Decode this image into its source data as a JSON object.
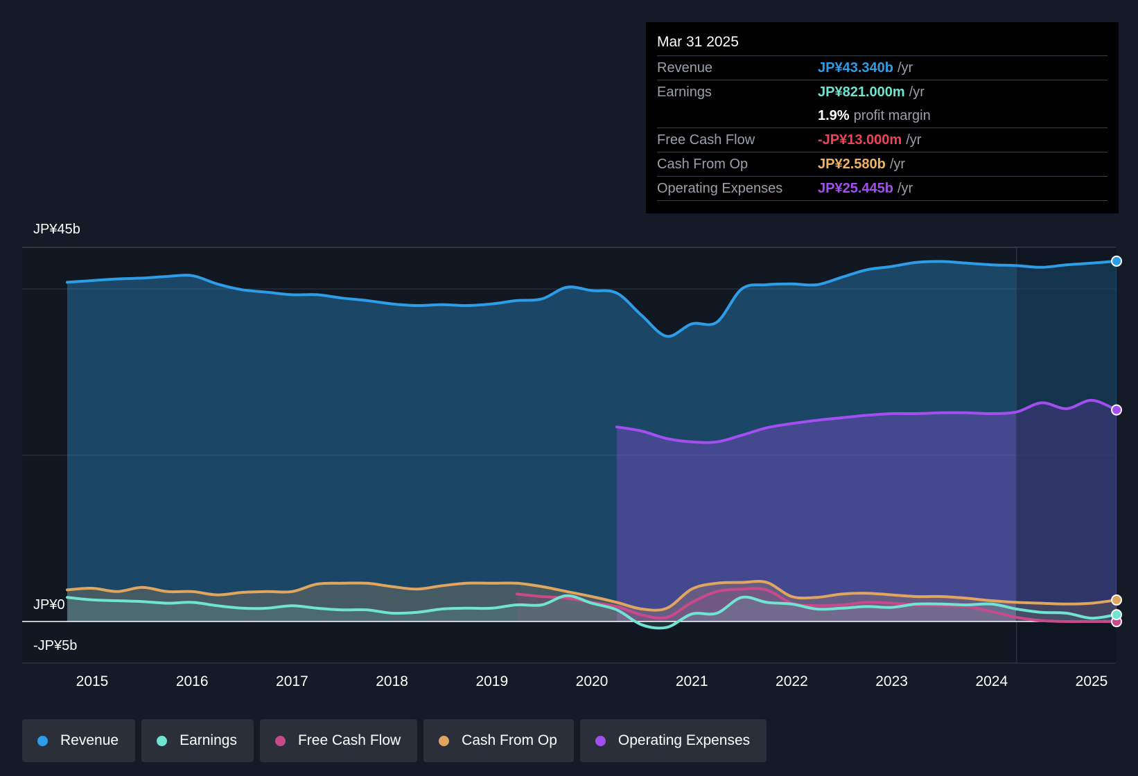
{
  "tooltip": {
    "date": "Mar 31 2025",
    "rows": [
      {
        "label": "Revenue",
        "value": "JP¥43.340b",
        "unit": "/yr",
        "color": "#2d9de8"
      },
      {
        "label": "Earnings",
        "value": "JP¥821.000m",
        "unit": "/yr",
        "color": "#71e3d1"
      },
      {
        "label": "",
        "value": "1.9%",
        "unit": "profit margin",
        "color": "#ffffff"
      },
      {
        "label": "Free Cash Flow",
        "value": "-JP¥13.000m",
        "unit": "/yr",
        "color": "#ee4455"
      },
      {
        "label": "Cash From Op",
        "value": "JP¥2.580b",
        "unit": "/yr",
        "color": "#f0b366"
      },
      {
        "label": "Operating Expenses",
        "value": "JP¥25.445b",
        "unit": "/yr",
        "color": "#a24ef0"
      }
    ]
  },
  "legend": [
    {
      "label": "Revenue",
      "color": "#2d9de8"
    },
    {
      "label": "Earnings",
      "color": "#71e3d1"
    },
    {
      "label": "Free Cash Flow",
      "color": "#c94a8a"
    },
    {
      "label": "Cash From Op",
      "color": "#e0a55e"
    },
    {
      "label": "Operating Expenses",
      "color": "#a24ef0"
    }
  ],
  "chart_data": {
    "type": "area",
    "title": "",
    "ylim": [
      -5,
      45
    ],
    "y_tick_labels": [
      "JP¥45b",
      "JP¥0",
      "-JP¥5b"
    ],
    "x_tick_labels": [
      "2015",
      "2016",
      "2017",
      "2018",
      "2019",
      "2020",
      "2021",
      "2022",
      "2023",
      "2024",
      "2025"
    ],
    "forecast_shade_from": 2024.25,
    "series": [
      {
        "name": "Revenue",
        "color": "#2d9de8",
        "x": [
          2014.75,
          2015.0,
          2015.25,
          2015.5,
          2015.75,
          2016.0,
          2016.25,
          2016.5,
          2016.75,
          2017.0,
          2017.25,
          2017.5,
          2017.75,
          2018.0,
          2018.25,
          2018.5,
          2018.75,
          2019.0,
          2019.25,
          2019.5,
          2019.75,
          2020.0,
          2020.25,
          2020.5,
          2020.75,
          2021.0,
          2021.25,
          2021.5,
          2021.75,
          2022.0,
          2022.25,
          2022.5,
          2022.75,
          2023.0,
          2023.25,
          2023.5,
          2023.75,
          2024.0,
          2024.25,
          2024.5,
          2024.75,
          2025.0,
          2025.25
        ],
        "values": [
          40.8,
          41.0,
          41.2,
          41.3,
          41.5,
          41.6,
          40.6,
          39.9,
          39.6,
          39.3,
          39.3,
          38.9,
          38.6,
          38.2,
          38.0,
          38.1,
          38.0,
          38.2,
          38.6,
          38.8,
          40.2,
          39.8,
          39.5,
          36.8,
          34.3,
          35.8,
          36.0,
          40.0,
          40.5,
          40.6,
          40.5,
          41.4,
          42.3,
          42.7,
          43.2,
          43.3,
          43.1,
          42.9,
          42.8,
          42.6,
          42.9,
          43.1,
          43.34
        ]
      },
      {
        "name": "Operating Expenses",
        "color": "#a24ef0",
        "x": [
          2020.25,
          2020.5,
          2020.75,
          2021.0,
          2021.25,
          2021.5,
          2021.75,
          2022.0,
          2022.25,
          2022.5,
          2022.75,
          2023.0,
          2023.25,
          2023.5,
          2023.75,
          2024.0,
          2024.25,
          2024.5,
          2024.75,
          2025.0,
          2025.25
        ],
        "values": [
          23.4,
          22.9,
          22.0,
          21.6,
          21.6,
          22.4,
          23.3,
          23.8,
          24.2,
          24.5,
          24.8,
          25.0,
          25.0,
          25.1,
          25.1,
          25.0,
          25.2,
          26.3,
          25.6,
          26.6,
          25.445
        ]
      },
      {
        "name": "Cash From Op",
        "color": "#e0a55e",
        "x": [
          2014.75,
          2015.0,
          2015.25,
          2015.5,
          2015.75,
          2016.0,
          2016.25,
          2016.5,
          2016.75,
          2017.0,
          2017.25,
          2017.5,
          2017.75,
          2018.0,
          2018.25,
          2018.5,
          2018.75,
          2019.0,
          2019.25,
          2019.5,
          2019.75,
          2020.0,
          2020.25,
          2020.5,
          2020.75,
          2021.0,
          2021.25,
          2021.5,
          2021.75,
          2022.0,
          2022.25,
          2022.5,
          2022.75,
          2023.0,
          2023.25,
          2023.5,
          2023.75,
          2024.0,
          2024.25,
          2024.5,
          2024.75,
          2025.0,
          2025.25
        ],
        "values": [
          3.8,
          4.0,
          3.6,
          4.1,
          3.6,
          3.6,
          3.2,
          3.5,
          3.6,
          3.6,
          4.5,
          4.6,
          4.6,
          4.2,
          3.9,
          4.3,
          4.6,
          4.6,
          4.6,
          4.2,
          3.6,
          3.0,
          2.3,
          1.5,
          1.6,
          3.9,
          4.6,
          4.7,
          4.7,
          3.0,
          2.9,
          3.3,
          3.4,
          3.2,
          3.0,
          3.0,
          2.8,
          2.5,
          2.3,
          2.2,
          2.1,
          2.2,
          2.58
        ]
      },
      {
        "name": "Free Cash Flow",
        "color": "#c94a8a",
        "x": [
          2019.25,
          2019.5,
          2019.75,
          2020.0,
          2020.25,
          2020.5,
          2020.75,
          2021.0,
          2021.25,
          2021.5,
          2021.75,
          2022.0,
          2022.25,
          2022.5,
          2022.75,
          2023.0,
          2023.25,
          2023.5,
          2023.75,
          2024.0,
          2024.25,
          2024.5,
          2024.75,
          2025.0,
          2025.25
        ],
        "values": [
          3.3,
          3.0,
          2.8,
          2.3,
          1.8,
          0.8,
          0.5,
          2.3,
          3.6,
          3.9,
          3.8,
          2.2,
          1.9,
          2.0,
          2.3,
          2.2,
          2.0,
          1.9,
          1.8,
          1.2,
          0.5,
          0.1,
          0.0,
          0.0,
          -0.013
        ]
      },
      {
        "name": "Earnings",
        "color": "#71e3d1",
        "x": [
          2014.75,
          2015.0,
          2015.25,
          2015.5,
          2015.75,
          2016.0,
          2016.25,
          2016.5,
          2016.75,
          2017.0,
          2017.25,
          2017.5,
          2017.75,
          2018.0,
          2018.25,
          2018.5,
          2018.75,
          2019.0,
          2019.25,
          2019.5,
          2019.75,
          2020.0,
          2020.25,
          2020.5,
          2020.75,
          2021.0,
          2021.25,
          2021.5,
          2021.75,
          2022.0,
          2022.25,
          2022.5,
          2022.75,
          2023.0,
          2023.25,
          2023.5,
          2023.75,
          2024.0,
          2024.25,
          2024.5,
          2024.75,
          2025.0,
          2025.25
        ],
        "values": [
          2.9,
          2.6,
          2.5,
          2.4,
          2.2,
          2.3,
          1.9,
          1.6,
          1.6,
          1.9,
          1.6,
          1.4,
          1.4,
          1.0,
          1.1,
          1.5,
          1.6,
          1.6,
          2.0,
          2.0,
          3.1,
          2.2,
          1.4,
          -0.4,
          -0.7,
          0.9,
          1.0,
          2.9,
          2.3,
          2.1,
          1.5,
          1.6,
          1.8,
          1.7,
          2.1,
          2.1,
          2.0,
          2.1,
          1.5,
          1.1,
          1.0,
          0.4,
          0.821
        ]
      }
    ]
  }
}
